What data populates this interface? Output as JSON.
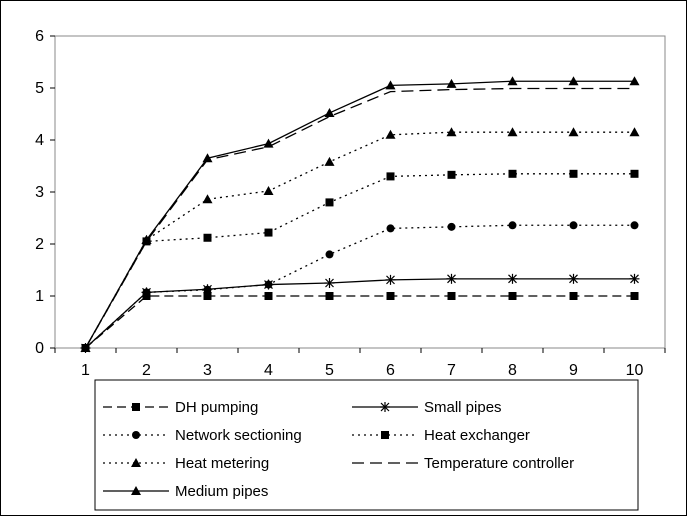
{
  "chart_data": {
    "type": "line",
    "title": "",
    "xlabel": "",
    "ylabel": "",
    "x": [
      1,
      2,
      3,
      4,
      5,
      6,
      7,
      8,
      9,
      10
    ],
    "ylim": [
      0,
      6
    ],
    "yticks": [
      0,
      1,
      2,
      3,
      4,
      5,
      6
    ],
    "grid": false,
    "legend_position": "bottom",
    "series": [
      {
        "name": "DH pumping",
        "values": [
          0,
          1.0,
          1.0,
          1.0,
          1.0,
          1.0,
          1.0,
          1.0,
          1.0,
          1.0
        ],
        "line": "dashed",
        "marker": "square"
      },
      {
        "name": "Small pipes",
        "values": [
          0,
          1.07,
          1.13,
          1.22,
          1.25,
          1.31,
          1.33,
          1.33,
          1.33,
          1.33
        ],
        "line": "solid",
        "marker": "star"
      },
      {
        "name": "Network sectioning",
        "values": [
          0,
          1.07,
          1.12,
          1.22,
          1.8,
          2.3,
          2.33,
          2.36,
          2.36,
          2.36
        ],
        "line": "dotted",
        "marker": "circle"
      },
      {
        "name": "Heat exchanger",
        "values": [
          0,
          2.05,
          2.12,
          2.22,
          2.8,
          3.3,
          3.33,
          3.35,
          3.35,
          3.35
        ],
        "line": "dotted",
        "marker": "square"
      },
      {
        "name": "Heat metering",
        "values": [
          0,
          2.08,
          2.86,
          3.02,
          3.58,
          4.1,
          4.15,
          4.15,
          4.15,
          4.15
        ],
        "line": "dotted",
        "marker": "triangle"
      },
      {
        "name": "Temperature controller",
        "values": [
          0,
          2.05,
          3.62,
          3.87,
          4.45,
          4.93,
          4.97,
          4.99,
          4.99,
          4.99
        ],
        "line": "longdash",
        "marker": "none"
      },
      {
        "name": "Medium pipes",
        "values": [
          0,
          2.08,
          3.65,
          3.93,
          4.52,
          5.05,
          5.08,
          5.13,
          5.13,
          5.13
        ],
        "line": "solid",
        "marker": "triangle"
      }
    ]
  }
}
